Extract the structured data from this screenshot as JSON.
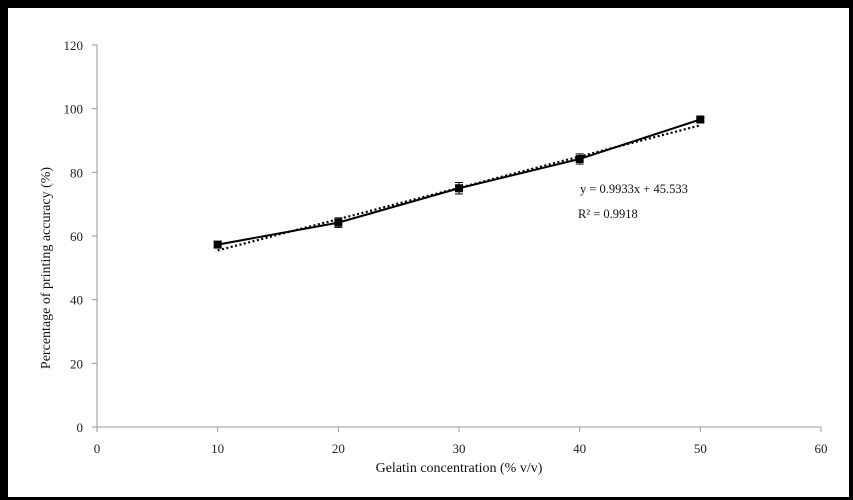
{
  "chart_data": {
    "type": "scatter",
    "title": "",
    "xlabel": "Gelatin concentration (% v/v)",
    "ylabel": "Percentage of printing accuracy (%)",
    "xlim": [
      0,
      60
    ],
    "ylim": [
      0,
      120
    ],
    "x_ticks": [
      0,
      10,
      20,
      30,
      40,
      50,
      60
    ],
    "y_ticks": [
      0,
      20,
      40,
      60,
      80,
      100,
      120
    ],
    "grid": false,
    "legend": "none",
    "series": [
      {
        "x": [
          10,
          20,
          30,
          40,
          50
        ],
        "y": [
          57.3,
          64.2,
          75.0,
          84.2,
          96.6
        ],
        "error": [
          1.0,
          1.5,
          1.8,
          1.6,
          0.7
        ],
        "line": "solid",
        "marker": "square",
        "color": "#000000"
      }
    ],
    "trendline": {
      "type": "linear",
      "slope": 0.9933,
      "intercept": 45.533,
      "style": "dotted",
      "equation_label": "y = 0.9933x + 45.533",
      "r2_label": "R² = 0.9918"
    }
  }
}
